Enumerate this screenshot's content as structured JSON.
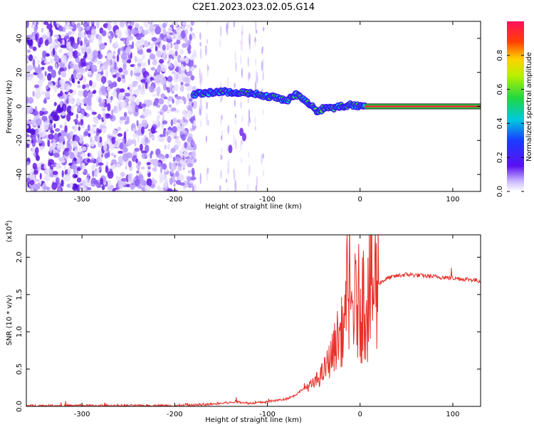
{
  "title": "C2E1.2023.023.02.05.G14",
  "colors": {
    "spectrogram_purple": "#6a1ee8",
    "snr_line": "#e8302a"
  },
  "colorbar": {
    "label": "Normalized spectral amplitude",
    "ticks": [
      "0.0",
      "0.2",
      "0.4",
      "0.6",
      "0.8"
    ],
    "tick_values": [
      0.0,
      0.2,
      0.4,
      0.6,
      0.8
    ],
    "range": [
      0,
      1
    ]
  },
  "chart_data": [
    {
      "type": "heatmap",
      "xlabel": "Height of straight line (km)",
      "ylabel": "Frequency (Hz)",
      "xlim": [
        -360,
        130
      ],
      "ylim": [
        -50,
        50
      ],
      "x_ticks": [
        "-300",
        "-200",
        "-100",
        "0",
        "100"
      ],
      "x_tick_values": [
        -300,
        -200,
        -100,
        0,
        100
      ],
      "y_ticks": [
        "-40",
        "-20",
        "0",
        "20",
        "40"
      ],
      "y_tick_values": [
        -40,
        -20,
        0,
        20,
        40
      ],
      "noise_region_x": [
        -360,
        -178
      ],
      "signal_track": {
        "x": [
          -180,
          -170,
          -160,
          -150,
          -140,
          -130,
          -120,
          -110,
          -100,
          -90,
          -80,
          -70,
          -60,
          -50,
          -45,
          -40,
          -30,
          -20,
          -10,
          0,
          50,
          100,
          130
        ],
        "y": [
          7,
          8,
          8,
          9,
          8,
          8,
          8,
          7,
          6,
          5,
          3,
          7,
          4,
          -1,
          -4,
          -1,
          -1,
          0,
          1,
          0,
          0,
          0,
          0
        ]
      }
    },
    {
      "type": "line",
      "xlabel": "Height of straight line (km)",
      "ylabel": "SNR (10 * v/v)",
      "y_scale_label": "(x10",
      "y_scale_exp": "4",
      "xlim": [
        -360,
        130
      ],
      "ylim": [
        0,
        2.3
      ],
      "x_ticks": [
        "-300",
        "-200",
        "-100",
        "0",
        "100"
      ],
      "x_tick_values": [
        -300,
        -200,
        -100,
        0,
        100
      ],
      "y_ticks": [
        "0.0",
        "0.5",
        "1.0",
        "1.5",
        "2.0"
      ],
      "y_tick_values": [
        0.0,
        0.5,
        1.0,
        1.5,
        2.0
      ],
      "series": [
        {
          "x": [
            -360,
            -300,
            -250,
            -200,
            -170,
            -150,
            -130,
            -120,
            -100,
            -80,
            -70,
            -60,
            -50,
            -40,
            -30,
            -25,
            -20,
            -15,
            -12,
            -10,
            -5,
            0,
            5,
            10,
            20,
            30,
            40,
            50,
            60,
            80,
            100,
            110,
            120,
            130
          ],
          "y": [
            0.01,
            0.01,
            0.01,
            0.01,
            0.02,
            0.04,
            0.06,
            0.04,
            0.06,
            0.1,
            0.15,
            0.25,
            0.3,
            0.45,
            0.7,
            0.9,
            1.0,
            1.15,
            1.25,
            1.3,
            1.35,
            1.4,
            1.45,
            1.55,
            1.65,
            1.72,
            1.75,
            1.77,
            1.76,
            1.74,
            1.72,
            1.71,
            1.7,
            1.68
          ]
        }
      ]
    }
  ]
}
